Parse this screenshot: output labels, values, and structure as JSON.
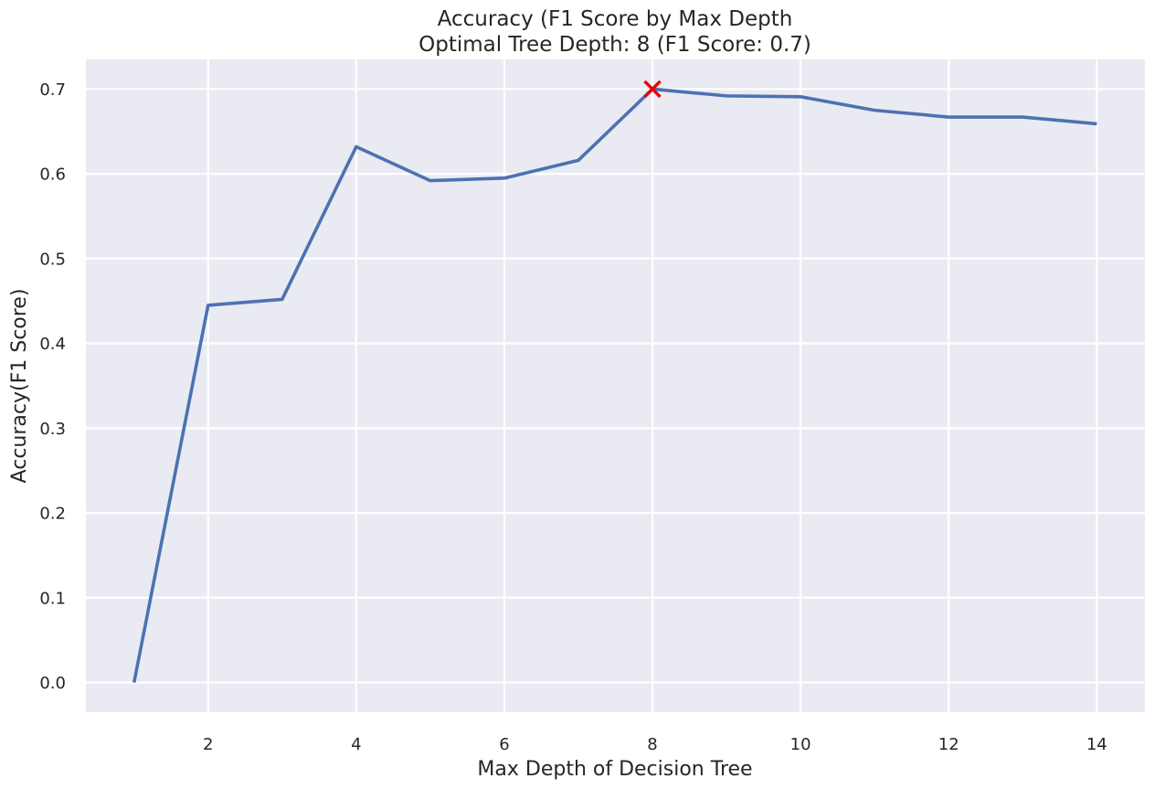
{
  "chart_data": {
    "type": "line",
    "title_line1": "Accuracy (F1 Score by Max Depth",
    "title_line2": "Optimal Tree Depth: 8 (F1 Score: 0.7)",
    "xlabel": "Max Depth of Decision Tree",
    "ylabel": "Accuracy(F1 Score)",
    "x": [
      1,
      2,
      3,
      4,
      5,
      6,
      7,
      8,
      9,
      10,
      11,
      12,
      13,
      14
    ],
    "series": [
      {
        "values": [
          0.0,
          0.445,
          0.452,
          0.632,
          0.592,
          0.595,
          0.616,
          0.7,
          0.692,
          0.691,
          0.675,
          0.667,
          0.667,
          0.659
        ],
        "color": "#4c72b0"
      }
    ],
    "optimal_point": {
      "x": 8,
      "y": 0.7,
      "marker": "x",
      "color": "#e8000b"
    },
    "xticks": [
      "2",
      "4",
      "6",
      "8",
      "10",
      "12",
      "14"
    ],
    "yticks": [
      "0.0",
      "0.1",
      "0.2",
      "0.3",
      "0.4",
      "0.5",
      "0.6",
      "0.7"
    ],
    "xlim": [
      0.35,
      14.65
    ],
    "ylim": [
      -0.035,
      0.735
    ],
    "grid": true,
    "background": "#eaeaf2",
    "grid_color": "#ffffff"
  }
}
